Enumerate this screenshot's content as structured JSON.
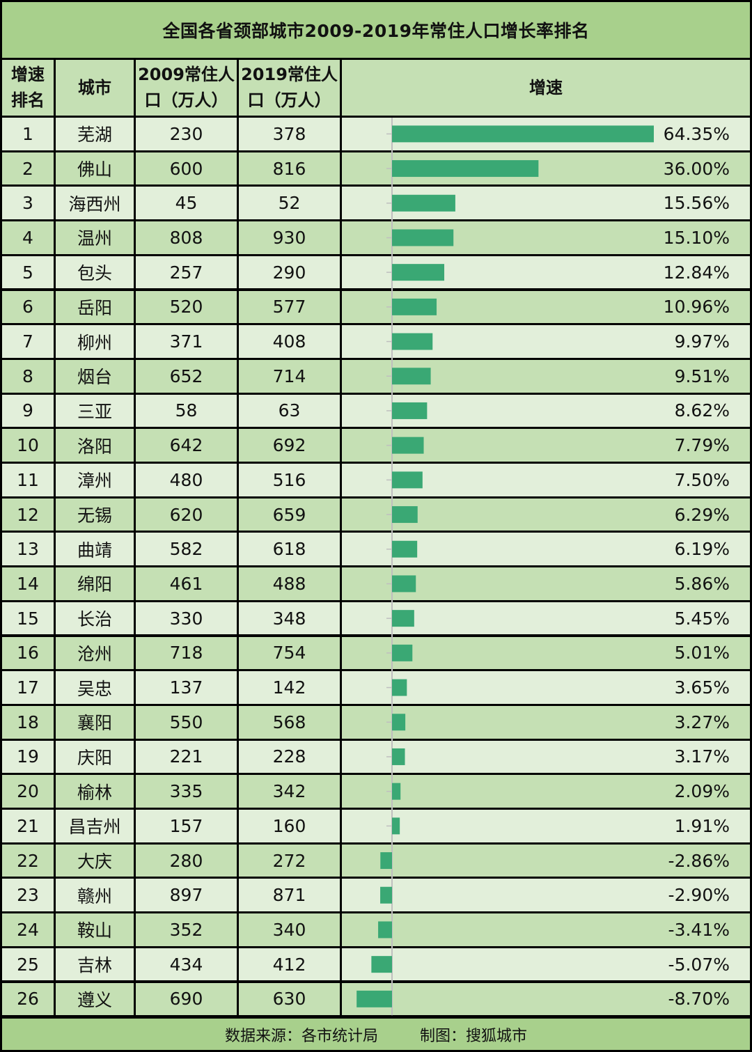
{
  "title": "全国各省颈部城市2009-2019年常住人口增长率排名",
  "headers": {
    "rank_line1": "增速",
    "rank_line2": "排名",
    "city": "城市",
    "pop2009_line1": "2009常住人",
    "pop2009_line2": "口（万人）",
    "pop2019_line1": "2019常住人",
    "pop2019_line2": "口（万人）",
    "growth": "增速"
  },
  "rows": [
    {
      "rank": "1",
      "city": "芜湖",
      "pop2009": "230",
      "pop2019": "378",
      "growth_label": "64.35%"
    },
    {
      "rank": "2",
      "city": "佛山",
      "pop2009": "600",
      "pop2019": "816",
      "growth_label": "36.00%"
    },
    {
      "rank": "3",
      "city": "海西州",
      "pop2009": "45",
      "pop2019": "52",
      "growth_label": "15.56%"
    },
    {
      "rank": "4",
      "city": "温州",
      "pop2009": "808",
      "pop2019": "930",
      "growth_label": "15.10%"
    },
    {
      "rank": "5",
      "city": "包头",
      "pop2009": "257",
      "pop2019": "290",
      "growth_label": "12.84%"
    },
    {
      "rank": "6",
      "city": "岳阳",
      "pop2009": "520",
      "pop2019": "577",
      "growth_label": "10.96%"
    },
    {
      "rank": "7",
      "city": "柳州",
      "pop2009": "371",
      "pop2019": "408",
      "growth_label": "9.97%"
    },
    {
      "rank": "8",
      "city": "烟台",
      "pop2009": "652",
      "pop2019": "714",
      "growth_label": "9.51%"
    },
    {
      "rank": "9",
      "city": "三亚",
      "pop2009": "58",
      "pop2019": "63",
      "growth_label": "8.62%"
    },
    {
      "rank": "10",
      "city": "洛阳",
      "pop2009": "642",
      "pop2019": "692",
      "growth_label": "7.79%"
    },
    {
      "rank": "11",
      "city": "漳州",
      "pop2009": "480",
      "pop2019": "516",
      "growth_label": "7.50%"
    },
    {
      "rank": "12",
      "city": "无锡",
      "pop2009": "620",
      "pop2019": "659",
      "growth_label": "6.29%"
    },
    {
      "rank": "13",
      "city": "曲靖",
      "pop2009": "582",
      "pop2019": "618",
      "growth_label": "6.19%"
    },
    {
      "rank": "14",
      "city": "绵阳",
      "pop2009": "461",
      "pop2019": "488",
      "growth_label": "5.86%"
    },
    {
      "rank": "15",
      "city": "长治",
      "pop2009": "330",
      "pop2019": "348",
      "growth_label": "5.45%"
    },
    {
      "rank": "16",
      "city": "沧州",
      "pop2009": "718",
      "pop2019": "754",
      "growth_label": "5.01%"
    },
    {
      "rank": "17",
      "city": "吴忠",
      "pop2009": "137",
      "pop2019": "142",
      "growth_label": "3.65%"
    },
    {
      "rank": "18",
      "city": "襄阳",
      "pop2009": "550",
      "pop2019": "568",
      "growth_label": "3.27%"
    },
    {
      "rank": "19",
      "city": "庆阳",
      "pop2009": "221",
      "pop2019": "228",
      "growth_label": "3.17%"
    },
    {
      "rank": "20",
      "city": "榆林",
      "pop2009": "335",
      "pop2019": "342",
      "growth_label": "2.09%"
    },
    {
      "rank": "21",
      "city": "昌吉州",
      "pop2009": "157",
      "pop2019": "160",
      "growth_label": "1.91%"
    },
    {
      "rank": "22",
      "city": "大庆",
      "pop2009": "280",
      "pop2019": "272",
      "growth_label": "-2.86%"
    },
    {
      "rank": "23",
      "city": "赣州",
      "pop2009": "897",
      "pop2019": "871",
      "growth_label": "-2.90%"
    },
    {
      "rank": "24",
      "city": "鞍山",
      "pop2009": "352",
      "pop2019": "340",
      "growth_label": "-3.41%"
    },
    {
      "rank": "25",
      "city": "吉林",
      "pop2009": "434",
      "pop2019": "412",
      "growth_label": "-5.07%"
    },
    {
      "rank": "26",
      "city": "遵义",
      "pop2009": "690",
      "pop2019": "630",
      "growth_label": "-8.70%"
    }
  ],
  "footer": {
    "source": "数据来源：各市统计局",
    "credit": "制图：搜狐城市"
  },
  "colors": {
    "title_bg": "#a8d08c",
    "header_bg": "#c5e0b4",
    "row_light": "#e2efda",
    "row_dark": "#c5e0b4",
    "footer_bg": "#a8d08c",
    "bar": "#3aa874",
    "axis": "#bfbfbf"
  },
  "chart_data": {
    "type": "bar",
    "orientation": "horizontal",
    "title": "全国各省颈部城市2009-2019年常住人口增长率排名",
    "xlabel": "增速",
    "categories": [
      "芜湖",
      "佛山",
      "海西州",
      "温州",
      "包头",
      "岳阳",
      "柳州",
      "烟台",
      "三亚",
      "洛阳",
      "漳州",
      "无锡",
      "曲靖",
      "绵阳",
      "长治",
      "沧州",
      "吴忠",
      "襄阳",
      "庆阳",
      "榆林",
      "昌吉州",
      "大庆",
      "赣州",
      "鞍山",
      "吉林",
      "遵义"
    ],
    "values": [
      64.35,
      36.0,
      15.56,
      15.1,
      12.84,
      10.96,
      9.97,
      9.51,
      8.62,
      7.79,
      7.5,
      6.29,
      6.19,
      5.86,
      5.45,
      5.01,
      3.65,
      3.27,
      3.17,
      2.09,
      1.91,
      -2.86,
      -2.9,
      -3.41,
      -5.07,
      -8.7
    ],
    "unit": "%",
    "grid": false,
    "legend": "none"
  }
}
